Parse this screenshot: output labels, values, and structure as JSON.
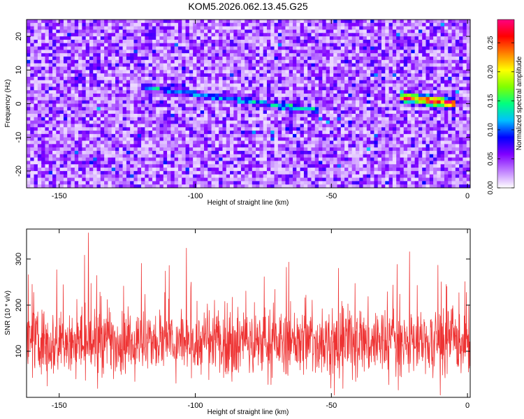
{
  "chart_data": [
    {
      "type": "heatmap",
      "title": "KOM5.2026.062.13.45.G25",
      "xlabel": "Height of straight line (km)",
      "ylabel": "Frequency (Hz)",
      "xlim": [
        -162,
        1
      ],
      "ylim": [
        -25,
        25
      ],
      "x_ticks": [
        -150,
        -100,
        -50,
        0
      ],
      "y_ticks": [
        -20,
        -10,
        0,
        10,
        20
      ],
      "colorbar": {
        "label": "Normalized spectral amplitude",
        "range": [
          0,
          0.29
        ],
        "ticks": [
          0.0,
          0.05,
          0.1,
          0.15,
          0.2,
          0.25
        ],
        "tick_labels": [
          "0.00",
          "0.05",
          "0.10",
          "0.15",
          "0.20",
          "0.25"
        ],
        "colors": [
          "#ffffff",
          "#c080ff",
          "#8000ff",
          "#0000ff",
          "#00c0ff",
          "#00ff80",
          "#80ff00",
          "#ffff00",
          "#ff8000",
          "#ff0000",
          "#ff0080"
        ]
      },
      "background_level": 0.04,
      "features": [
        {
          "x": [
            -25,
            -5
          ],
          "freq_center_at_x": [
            2,
            0
          ],
          "freq_halfwidth": 1.3,
          "peak_amplitude": 0.27
        },
        {
          "x": [
            -120,
            -55
          ],
          "freq_center_at_x": [
            5,
            -2
          ],
          "freq_halfwidth": 0.8,
          "peak_amplitude": 0.11
        }
      ]
    },
    {
      "type": "line",
      "xlabel": "Height of straight line (km)",
      "ylabel": "SNR (10 * v/v)",
      "xlim": [
        -162,
        1
      ],
      "ylim": [
        0,
        365
      ],
      "x_ticks": [
        -150,
        -100,
        -50,
        0
      ],
      "y_ticks": [
        100,
        200,
        300
      ],
      "series": [
        {
          "color": "#ee3333",
          "x_range": [
            -162,
            1
          ],
          "n_points": 1500,
          "baseline": 120,
          "spread": 55,
          "min": 5,
          "max": 365
        }
      ]
    }
  ]
}
